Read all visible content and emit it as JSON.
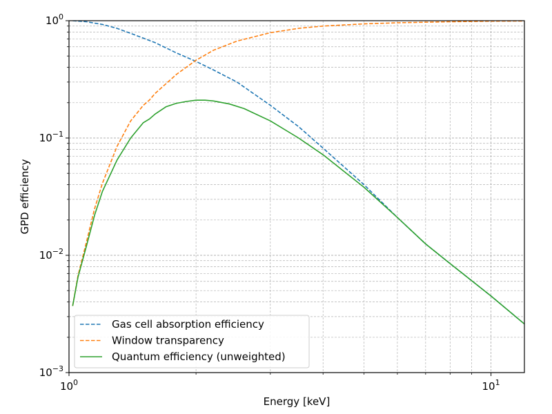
{
  "chart_data": {
    "type": "line",
    "title": "",
    "xlabel": "Energy [keV]",
    "ylabel": "GPD efficiency",
    "xscale": "log",
    "yscale": "log",
    "xlim": [
      1.0,
      12.0
    ],
    "ylim": [
      0.001,
      1.0
    ],
    "grid": "major and minor, dashed",
    "legend_position": "lower-left",
    "x_tick_labels": [
      {
        "value": 1,
        "base": "10",
        "exp": "0"
      },
      {
        "value": 10,
        "base": "10",
        "exp": "1"
      }
    ],
    "y_tick_labels": [
      {
        "value": 0.001,
        "base": "10",
        "exp": "−3"
      },
      {
        "value": 0.01,
        "base": "10",
        "exp": "−2"
      },
      {
        "value": 0.1,
        "base": "10",
        "exp": "−1"
      },
      {
        "value": 1,
        "base": "10",
        "exp": "0"
      }
    ],
    "series": [
      {
        "name": "Gas cell absorption efficiency",
        "color": "#1f77b4",
        "style": "dashed",
        "x": [
          1.02,
          1.1,
          1.2,
          1.3,
          1.4,
          1.5,
          1.6,
          1.8,
          2.0,
          2.2,
          2.5,
          3.0,
          3.5,
          4.0,
          5.0,
          6.0,
          7.0,
          8.0,
          10.0,
          12.0
        ],
        "y": [
          1.0,
          0.98,
          0.93,
          0.86,
          0.78,
          0.71,
          0.65,
          0.53,
          0.45,
          0.38,
          0.3,
          0.19,
          0.125,
          0.082,
          0.04,
          0.021,
          0.0125,
          0.0085,
          0.0045,
          0.0026
        ]
      },
      {
        "name": "Window transparency",
        "color": "#ff7f0e",
        "style": "dashed",
        "x": [
          1.02,
          1.05,
          1.1,
          1.15,
          1.2,
          1.3,
          1.4,
          1.5,
          1.55,
          1.6,
          1.8,
          2.0,
          2.2,
          2.5,
          3.0,
          3.5,
          4.0,
          5.0,
          6.0,
          8.0,
          10.0,
          12.0
        ],
        "y": [
          0.0037,
          0.0067,
          0.013,
          0.025,
          0.041,
          0.085,
          0.14,
          0.19,
          0.21,
          0.24,
          0.35,
          0.46,
          0.56,
          0.67,
          0.79,
          0.86,
          0.9,
          0.94,
          0.96,
          0.98,
          0.99,
          0.995
        ]
      },
      {
        "name": "Quantum efficiency (unweighted)",
        "color": "#2ca02c",
        "style": "solid",
        "x": [
          1.02,
          1.05,
          1.1,
          1.15,
          1.2,
          1.3,
          1.4,
          1.5,
          1.55,
          1.6,
          1.7,
          1.8,
          1.9,
          2.0,
          2.1,
          2.2,
          2.4,
          2.6,
          3.0,
          3.5,
          4.0,
          5.0,
          6.0,
          7.0,
          8.0,
          10.0,
          12.0
        ],
        "y": [
          0.0037,
          0.0065,
          0.012,
          0.022,
          0.035,
          0.065,
          0.1,
          0.135,
          0.145,
          0.16,
          0.185,
          0.198,
          0.205,
          0.21,
          0.21,
          0.207,
          0.195,
          0.178,
          0.14,
          0.1,
          0.072,
          0.038,
          0.021,
          0.0125,
          0.0085,
          0.0045,
          0.0026
        ]
      }
    ]
  }
}
